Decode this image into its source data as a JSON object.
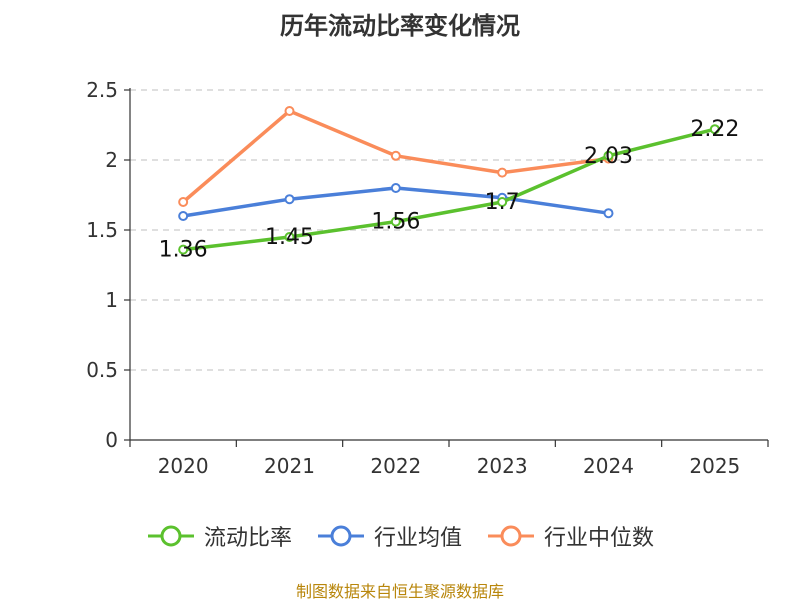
{
  "chart_data": {
    "type": "line",
    "title": "历年流动比率变化情况",
    "xlabel": "",
    "ylabel": "",
    "categories": [
      "2020",
      "2021",
      "2022",
      "2023",
      "2024",
      "2025"
    ],
    "ylim": [
      0,
      2.5
    ],
    "yticks": [
      0,
      0.5,
      1,
      1.5,
      2,
      2.5
    ],
    "ytick_labels": [
      "0",
      "0.5",
      "1",
      "1.5",
      "2",
      "2.5"
    ],
    "grid": true,
    "legend_position": "bottom",
    "series": [
      {
        "name": "流动比率",
        "color": "#5bc12e",
        "values": [
          1.36,
          1.45,
          1.56,
          1.7,
          2.03,
          2.22
        ],
        "labels": [
          "1.36",
          "1.45",
          "1.56",
          "1.7",
          "2.03",
          "2.22"
        ]
      },
      {
        "name": "行业均值",
        "color": "#4a7fd9",
        "values": [
          1.6,
          1.72,
          1.8,
          1.73,
          1.62,
          null
        ],
        "labels": []
      },
      {
        "name": "行业中位数",
        "color": "#fa8c5a",
        "values": [
          1.7,
          2.35,
          2.03,
          1.91,
          2.01,
          null
        ],
        "labels": []
      }
    ]
  },
  "footer": "制图数据来自恒生聚源数据库"
}
